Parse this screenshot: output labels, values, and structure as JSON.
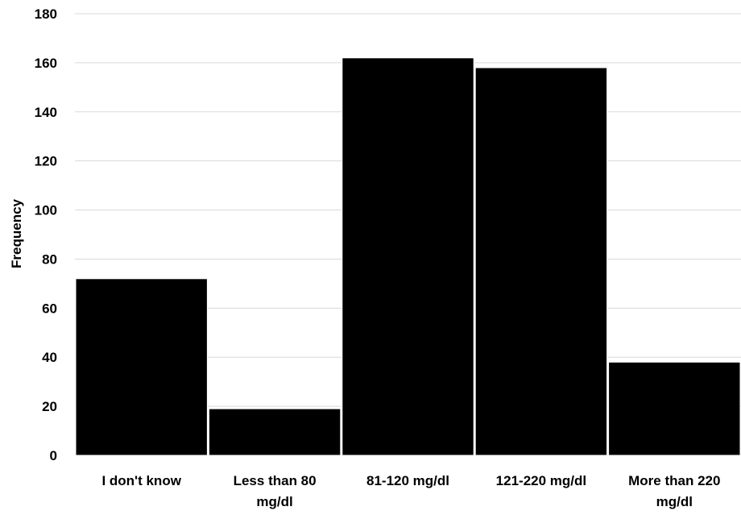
{
  "chart_data": {
    "type": "bar",
    "title": "",
    "xlabel": "",
    "ylabel": "Frequency",
    "categories": [
      "I don't know",
      "Less than 80 mg/dl",
      "81-120 mg/dl",
      "121-220 mg/dl",
      "More than 220 mg/dl"
    ],
    "category_lines": [
      [
        "I don't know"
      ],
      [
        "Less than 80",
        "mg/dl"
      ],
      [
        "81-120 mg/dl"
      ],
      [
        "121-220 mg/dl"
      ],
      [
        "More than 220",
        "mg/dl"
      ]
    ],
    "values": [
      72,
      19,
      162,
      158,
      38
    ],
    "ylim": [
      0,
      180
    ],
    "yticks": [
      0,
      20,
      40,
      60,
      80,
      100,
      120,
      140,
      160,
      180
    ],
    "grid": true,
    "legend": "none",
    "colors": {
      "bar": "#000000",
      "gridline": "#d9d9d9",
      "text": "#000000"
    }
  }
}
